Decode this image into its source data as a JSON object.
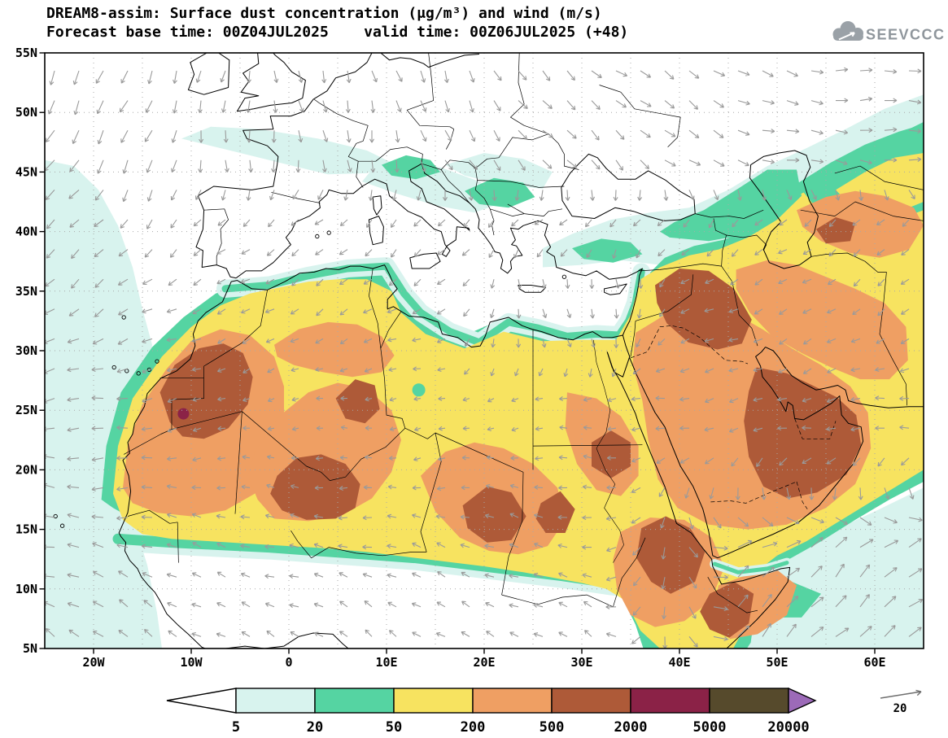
{
  "title": {
    "line1": "DREAM8-assim: Surface dust concentration (μg/m³) and wind (m/s)",
    "line2": "Forecast base time: 00Z04JUL2025    valid time: 00Z06JUL2025 (+48)"
  },
  "logo": {
    "text": "SEEVCCC"
  },
  "axes": {
    "lat_labels": [
      "55N",
      "50N",
      "45N",
      "40N",
      "35N",
      "30N",
      "25N",
      "20N",
      "15N",
      "10N",
      "5N"
    ],
    "lon_labels": [
      "20W",
      "10W",
      "0",
      "10E",
      "20E",
      "30E",
      "40E",
      "50E",
      "60E"
    ]
  },
  "colorbar": {
    "labels": [
      "5",
      "20",
      "50",
      "200",
      "500",
      "2000",
      "5000",
      "20000"
    ],
    "colors": [
      "#ffffff",
      "#d8f3ee",
      "#55d4a2",
      "#f7e360",
      "#ef9f63",
      "#ae5a38",
      "#8b2247",
      "#564a2c",
      "#9c6ab8"
    ]
  },
  "wind_ref": {
    "label": "20"
  },
  "chart_data": {
    "type": "contour-map",
    "model": "DREAM8-assim",
    "variable": "Surface dust concentration",
    "units": "μg/m³",
    "wind_variable": "wind",
    "wind_units": "m/s",
    "forecast_base_time": "00Z04JUL2025",
    "valid_time": "00Z06JUL2025",
    "lead_hours": 48,
    "contour_levels": [
      5,
      20,
      50,
      200,
      500,
      2000,
      5000,
      20000
    ],
    "level_colors": [
      "#ffffff",
      "#d8f3ee",
      "#55d4a2",
      "#f7e360",
      "#ef9f63",
      "#ae5a38",
      "#8b2247",
      "#564a2c",
      "#9c6ab8"
    ],
    "lon_range_deg": [
      -25,
      65
    ],
    "lat_range_deg": [
      5,
      55
    ],
    "grid_interval_deg": 5,
    "wind_reference_ms": 20,
    "max_regions": "Dust maxima (500-5000+ ug/m3) over Western Sahara/Mauritania/Morocco, northern Mali, Chad/Sudan, Iraq/Syria, the Persian Gulf/Oman and the southern Red Sea/Horn of Africa; a broad 50-500 ug/m3 plume spans the Sahara, Sahel edge, Arabia, the Middle East and Central Asia, with 5-50 ug/m3 fringes over the east Atlantic, southern Europe, Anatolia, the Caspian region and the NW Indian Ocean"
  }
}
